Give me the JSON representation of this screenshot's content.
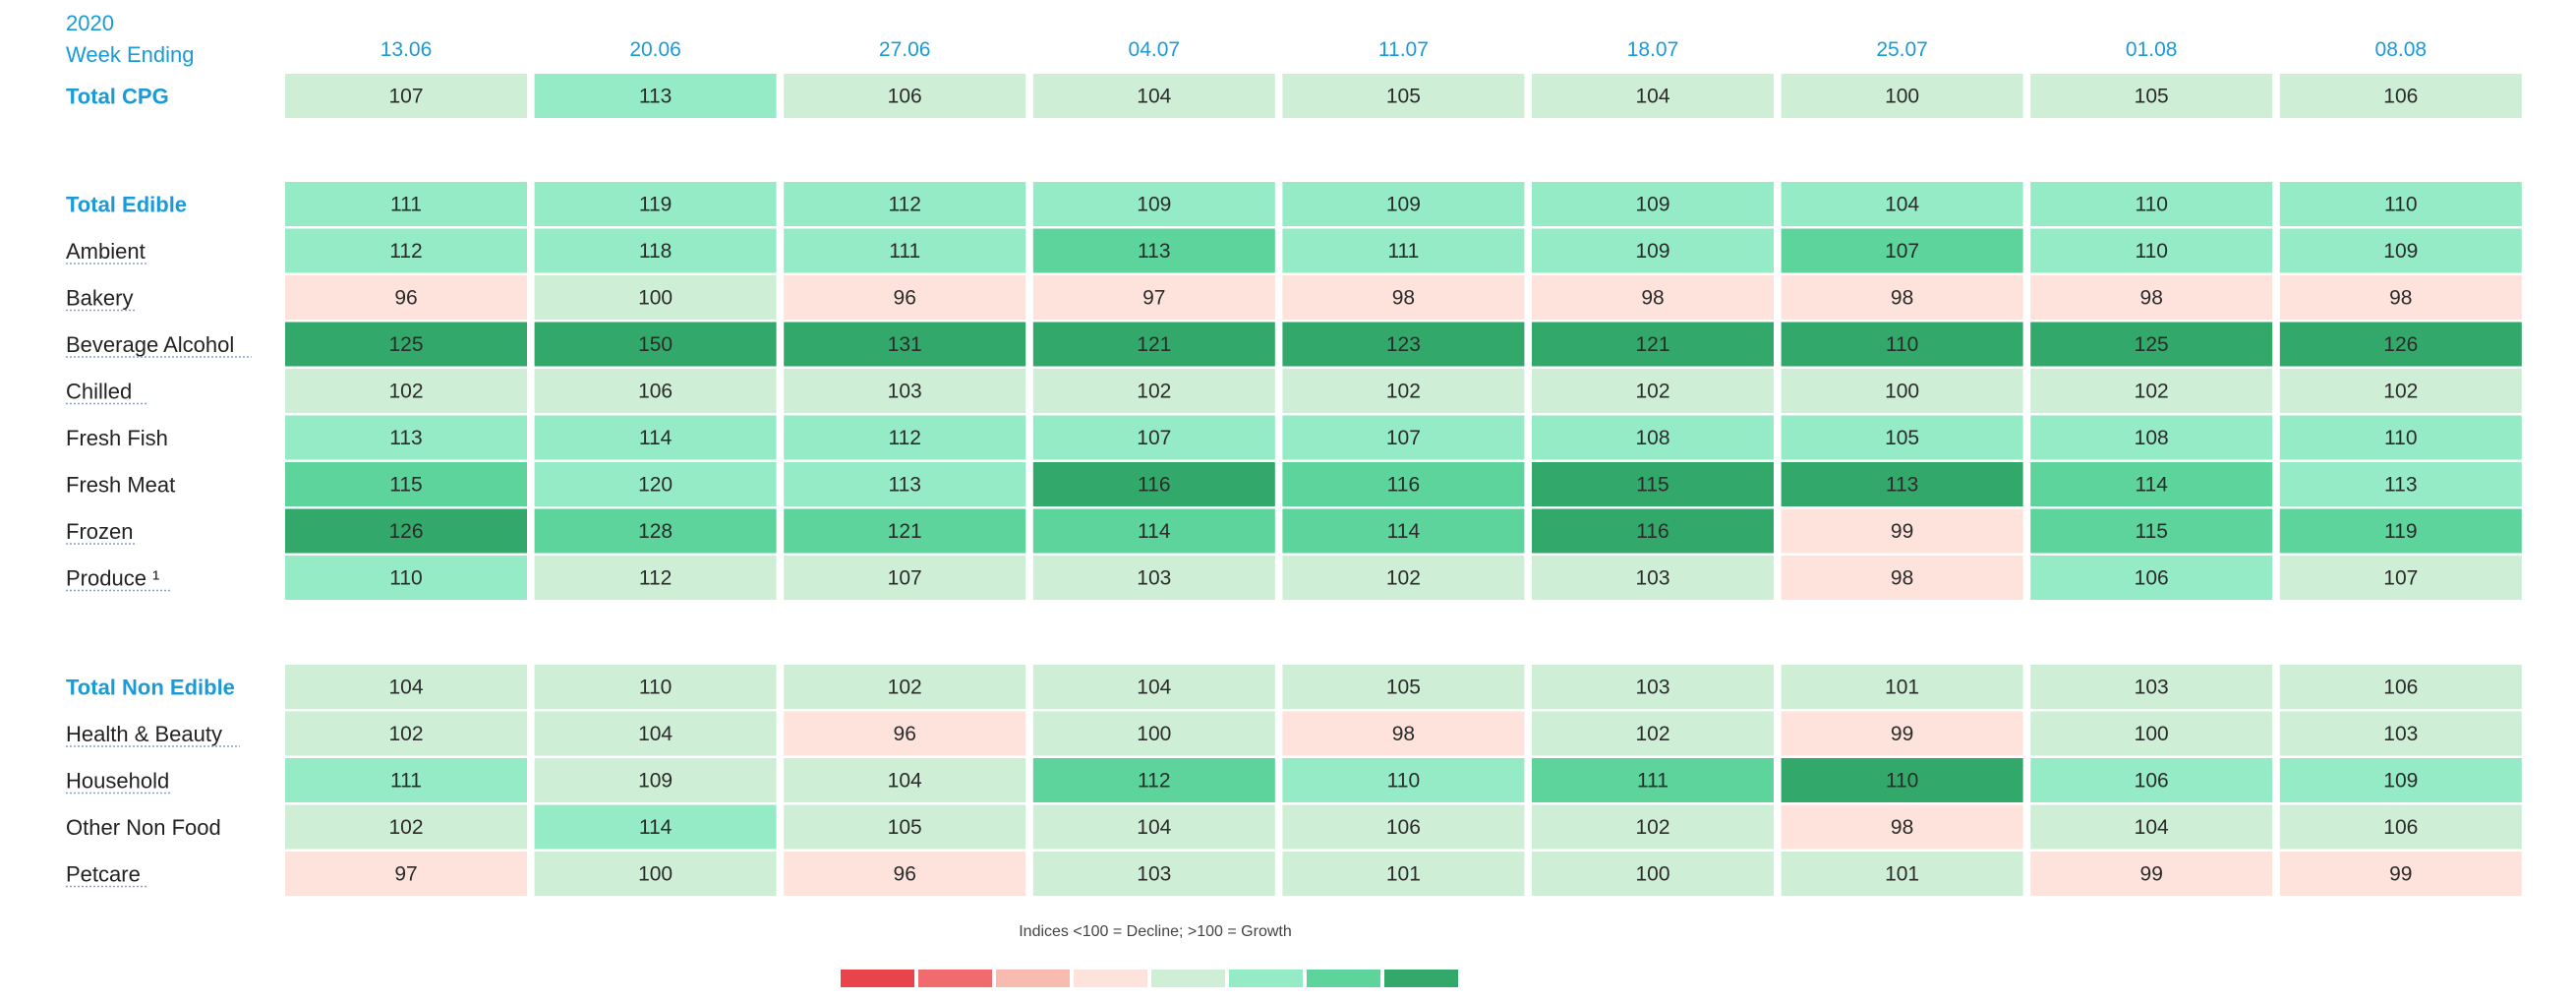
{
  "header": {
    "year": "2020",
    "week_label": "Week Ending"
  },
  "legend": {
    "caption": "Indices <100 = Decline; >100 = Growth",
    "swatches": [
      "#e8444a",
      "#f06a6e",
      "#f9bbb0",
      "#fde3dc",
      "#cfeed6",
      "#94ebc6",
      "#5cd49c",
      "#32a96a"
    ]
  },
  "colors": {
    "level_0": "#fde3dc",
    "level_1": "#cfeed6",
    "level_2": "#94ebc6",
    "level_3": "#5cd49c",
    "level_4": "#32a96a",
    "header_text": "#1a9ad6"
  },
  "chart_data": {
    "type": "heatmap",
    "columns": [
      "13.06",
      "20.06",
      "27.06",
      "04.07",
      "11.07",
      "18.07",
      "25.07",
      "01.08",
      "08.08"
    ],
    "groups": [
      {
        "rows": [
          {
            "label": "Total CPG",
            "bold": true,
            "underline": false,
            "values": [
              107,
              113,
              106,
              104,
              105,
              104,
              100,
              105,
              106
            ],
            "levels": [
              1,
              2,
              1,
              1,
              1,
              1,
              1,
              1,
              1
            ]
          }
        ]
      },
      {
        "rows": [
          {
            "label": "Total Edible",
            "bold": true,
            "underline": false,
            "values": [
              111,
              119,
              112,
              109,
              109,
              109,
              104,
              110,
              110
            ],
            "levels": [
              2,
              2,
              2,
              2,
              2,
              2,
              2,
              2,
              2
            ]
          },
          {
            "label": "Ambient",
            "bold": false,
            "underline": true,
            "values": [
              112,
              118,
              111,
              113,
              111,
              109,
              107,
              110,
              109
            ],
            "levels": [
              2,
              2,
              2,
              3,
              2,
              2,
              3,
              2,
              2
            ]
          },
          {
            "label": "Bakery",
            "bold": false,
            "underline": true,
            "values": [
              96,
              100,
              96,
              97,
              98,
              98,
              98,
              98,
              98
            ],
            "levels": [
              0,
              1,
              0,
              0,
              0,
              0,
              0,
              0,
              0
            ]
          },
          {
            "label": "Beverage Alcohol",
            "bold": false,
            "underline": true,
            "values": [
              125,
              150,
              131,
              121,
              123,
              121,
              110,
              125,
              126
            ],
            "levels": [
              4,
              4,
              4,
              4,
              4,
              4,
              4,
              4,
              4
            ]
          },
          {
            "label": "Chilled",
            "bold": false,
            "underline": true,
            "values": [
              102,
              106,
              103,
              102,
              102,
              102,
              100,
              102,
              102
            ],
            "levels": [
              1,
              1,
              1,
              1,
              1,
              1,
              1,
              1,
              1
            ]
          },
          {
            "label": "Fresh Fish",
            "bold": false,
            "underline": false,
            "values": [
              113,
              114,
              112,
              107,
              107,
              108,
              105,
              108,
              110
            ],
            "levels": [
              2,
              2,
              2,
              2,
              2,
              2,
              2,
              2,
              2
            ]
          },
          {
            "label": "Fresh Meat",
            "bold": false,
            "underline": false,
            "values": [
              115,
              120,
              113,
              116,
              116,
              115,
              113,
              114,
              113
            ],
            "levels": [
              3,
              2,
              2,
              4,
              3,
              4,
              4,
              3,
              2
            ]
          },
          {
            "label": "Frozen",
            "bold": false,
            "underline": true,
            "values": [
              126,
              128,
              121,
              114,
              114,
              116,
              99,
              115,
              119
            ],
            "levels": [
              4,
              3,
              3,
              3,
              3,
              4,
              0,
              3,
              3
            ]
          },
          {
            "label": "Produce ¹",
            "bold": false,
            "underline": true,
            "values": [
              110,
              112,
              107,
              103,
              102,
              103,
              98,
              106,
              107
            ],
            "levels": [
              2,
              1,
              1,
              1,
              1,
              1,
              0,
              2,
              1
            ]
          }
        ]
      },
      {
        "rows": [
          {
            "label": "Total Non Edible",
            "bold": true,
            "underline": false,
            "values": [
              104,
              110,
              102,
              104,
              105,
              103,
              101,
              103,
              106
            ],
            "levels": [
              1,
              1,
              1,
              1,
              1,
              1,
              1,
              1,
              1
            ]
          },
          {
            "label": "Health & Beauty",
            "bold": false,
            "underline": true,
            "values": [
              102,
              104,
              96,
              100,
              98,
              102,
              99,
              100,
              103
            ],
            "levels": [
              1,
              1,
              0,
              1,
              0,
              1,
              0,
              1,
              1
            ]
          },
          {
            "label": "Household",
            "bold": false,
            "underline": true,
            "values": [
              111,
              109,
              104,
              112,
              110,
              111,
              110,
              106,
              109
            ],
            "levels": [
              2,
              1,
              1,
              3,
              2,
              3,
              4,
              2,
              2
            ]
          },
          {
            "label": "Other Non Food",
            "bold": false,
            "underline": false,
            "values": [
              102,
              114,
              105,
              104,
              106,
              102,
              98,
              104,
              106
            ],
            "levels": [
              1,
              2,
              1,
              1,
              1,
              1,
              0,
              1,
              1
            ]
          },
          {
            "label": "Petcare",
            "bold": false,
            "underline": true,
            "values": [
              97,
              100,
              96,
              103,
              101,
              100,
              101,
              99,
              99
            ],
            "levels": [
              0,
              1,
              0,
              1,
              1,
              1,
              1,
              0,
              0
            ]
          }
        ]
      }
    ]
  }
}
